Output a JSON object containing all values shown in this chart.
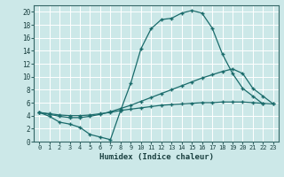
{
  "xlabel": "Humidex (Indice chaleur)",
  "bg_color": "#cce8e8",
  "line_color": "#1a6b6b",
  "grid_color": "#ffffff",
  "xlim": [
    -0.5,
    23.5
  ],
  "ylim": [
    0,
    21
  ],
  "xticks": [
    0,
    1,
    2,
    3,
    4,
    5,
    6,
    7,
    8,
    9,
    10,
    11,
    12,
    13,
    14,
    15,
    16,
    17,
    18,
    19,
    20,
    21,
    22,
    23
  ],
  "yticks": [
    0,
    2,
    4,
    6,
    8,
    10,
    12,
    14,
    16,
    18,
    20
  ],
  "line1_x": [
    0,
    1,
    2,
    3,
    4,
    5,
    6,
    7,
    8,
    9,
    10,
    11,
    12,
    13,
    14,
    15,
    16,
    17,
    18,
    19,
    20,
    21,
    22
  ],
  "line1_y": [
    4.5,
    3.9,
    3.0,
    2.7,
    2.2,
    1.1,
    0.7,
    0.3,
    4.8,
    9.0,
    14.3,
    17.4,
    18.8,
    19.0,
    19.8,
    20.2,
    19.8,
    17.5,
    13.5,
    10.5,
    8.2,
    7.0,
    5.8
  ],
  "line2_x": [
    0,
    1,
    2,
    3,
    4,
    5,
    6,
    7,
    8,
    9,
    10,
    11,
    12,
    13,
    14,
    15,
    16,
    17,
    18,
    19,
    20,
    21,
    22,
    23
  ],
  "line2_y": [
    4.5,
    4.2,
    3.9,
    3.7,
    3.7,
    3.9,
    4.2,
    4.6,
    5.1,
    5.6,
    6.2,
    6.8,
    7.4,
    8.0,
    8.6,
    9.2,
    9.8,
    10.3,
    10.8,
    11.2,
    10.5,
    8.2,
    7.0,
    5.8
  ],
  "line3_x": [
    0,
    1,
    2,
    3,
    4,
    5,
    6,
    7,
    8,
    9,
    10,
    11,
    12,
    13,
    14,
    15,
    16,
    17,
    18,
    19,
    20,
    21,
    22,
    23
  ],
  "line3_y": [
    4.5,
    4.3,
    4.1,
    4.0,
    4.0,
    4.1,
    4.3,
    4.5,
    4.8,
    5.0,
    5.2,
    5.4,
    5.6,
    5.7,
    5.8,
    5.9,
    6.0,
    6.0,
    6.1,
    6.1,
    6.1,
    6.0,
    5.9,
    5.8
  ]
}
